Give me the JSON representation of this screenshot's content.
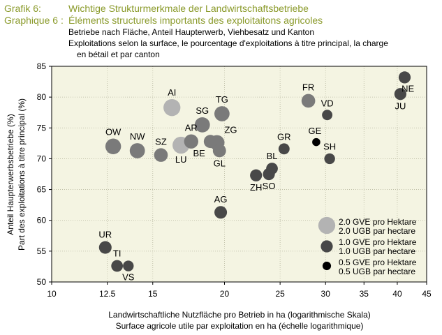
{
  "header": {
    "line1_prefix": "Grafik 6:",
    "line1_text": "Wichtige Strukturmerkmale der Landwirtschaftsbetriebe",
    "line2_prefix": "Graphique 6 :",
    "line2_text": "Éléments structurels importants des exploitaitons agricoles",
    "sub1": "Betriebe nach Fläche, Anteil Haupterwerb, Viehbesatz und Kanton",
    "sub2": "Exploitations selon la surface, le pourcentage d'exploitations à titre principal, la charge",
    "sub3": "en bétail et par canton"
  },
  "colors": {
    "title": "#8a9a2a",
    "plot_bg": "#f4f4e2",
    "bubble_large": "#b3b3b3",
    "bubble_medium": "#7a7a7a",
    "bubble_small": "#484848",
    "bubble_tiny": "#000000"
  },
  "chart_data": {
    "type": "scatter",
    "xscale": "log",
    "xlim": [
      10,
      45
    ],
    "ylim": [
      50,
      85
    ],
    "xticks": [
      10,
      12.5,
      15,
      20,
      25,
      30,
      35,
      40,
      45
    ],
    "yticks": [
      50,
      55,
      60,
      65,
      70,
      75,
      80,
      85
    ],
    "grid": true,
    "xlabel": "Landwirtschaftliche Nutzfläche pro Betrieb in ha (logarithmische Skala)",
    "xlabel2": "Surface agricole utile par exploitation en ha (échelle logarithmique)",
    "ylabel": "Anteil Haupterwerbsbetriebe (%)",
    "ylabel2": "Part des exploitations à titre principal (%)",
    "legend_position": "bottom-right",
    "legend": [
      {
        "size": 2.0,
        "label1": "2.0 GVE pro Hektare",
        "label2": "2.0 UGB par hectare"
      },
      {
        "size": 1.0,
        "label1": "1.0 GVE pro Hektare",
        "label2": "1.0 UGB par hectare"
      },
      {
        "size": 0.5,
        "label1": "0.5 GVE pro Hektare",
        "label2": "0.5 UGB par hectare"
      }
    ],
    "points": [
      {
        "label": "AI",
        "x": 16.2,
        "y": 78.3,
        "size": 2.0,
        "label_pos": "above"
      },
      {
        "label": "TG",
        "x": 19.8,
        "y": 77.3,
        "size": 1.6,
        "label_pos": "above"
      },
      {
        "label": "SG",
        "x": 18.3,
        "y": 75.5,
        "size": 1.6,
        "label_pos": "above"
      },
      {
        "label": "OW",
        "x": 12.8,
        "y": 72.0,
        "size": 1.7,
        "label_pos": "above"
      },
      {
        "label": "NW",
        "x": 14.1,
        "y": 71.3,
        "size": 1.6,
        "label_pos": "above"
      },
      {
        "label": "SZ",
        "x": 15.5,
        "y": 70.6,
        "size": 1.3,
        "label_pos": "above"
      },
      {
        "label": "LU",
        "x": 16.8,
        "y": 72.2,
        "size": 2.0,
        "label_pos": "below"
      },
      {
        "label": "AR",
        "x": 17.5,
        "y": 72.8,
        "size": 1.4,
        "label_pos": "above"
      },
      {
        "label": "BE",
        "x": 18.9,
        "y": 72.8,
        "size": 1.2,
        "label_pos": "belowleft"
      },
      {
        "label": "ZG",
        "x": 19.4,
        "y": 72.6,
        "size": 1.6,
        "label_pos": "aboveright"
      },
      {
        "label": "GL",
        "x": 19.6,
        "y": 71.3,
        "size": 1.2,
        "label_pos": "below"
      },
      {
        "label": "FR",
        "x": 28.0,
        "y": 79.4,
        "size": 1.3,
        "label_pos": "above"
      },
      {
        "label": "VD",
        "x": 30.2,
        "y": 77.1,
        "size": 0.75,
        "label_pos": "above"
      },
      {
        "label": "NE",
        "x": 41.2,
        "y": 83.2,
        "size": 1.0,
        "label_pos": "belowright"
      },
      {
        "label": "JU",
        "x": 40.5,
        "y": 80.5,
        "size": 1.0,
        "label_pos": "below"
      },
      {
        "label": "GE",
        "x": 28.9,
        "y": 72.7,
        "size": 0.45,
        "label_pos": "aboveleft"
      },
      {
        "label": "SH",
        "x": 30.5,
        "y": 70.0,
        "size": 0.8,
        "label_pos": "above"
      },
      {
        "label": "GR",
        "x": 25.4,
        "y": 71.6,
        "size": 0.85,
        "label_pos": "above"
      },
      {
        "label": "BL",
        "x": 24.2,
        "y": 68.4,
        "size": 0.95,
        "label_pos": "above"
      },
      {
        "label": "SO",
        "x": 23.9,
        "y": 67.5,
        "size": 1.0,
        "label_pos": "below"
      },
      {
        "label": "ZH",
        "x": 22.7,
        "y": 67.3,
        "size": 1.0,
        "label_pos": "below"
      },
      {
        "label": "AG",
        "x": 19.7,
        "y": 61.3,
        "size": 1.1,
        "label_pos": "above"
      },
      {
        "label": "UR",
        "x": 12.4,
        "y": 55.6,
        "size": 1.1,
        "label_pos": "above"
      },
      {
        "label": "TI",
        "x": 13.0,
        "y": 52.6,
        "size": 0.95,
        "label_pos": "above"
      },
      {
        "label": "VS",
        "x": 13.6,
        "y": 52.6,
        "size": 0.8,
        "label_pos": "below"
      }
    ]
  }
}
